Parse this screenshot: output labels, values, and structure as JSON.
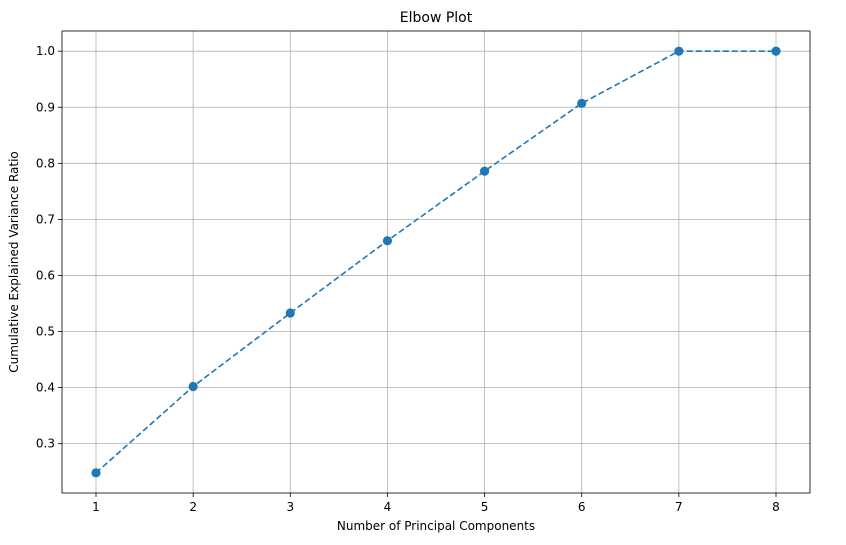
{
  "chart_data": {
    "type": "line",
    "title": "Elbow Plot",
    "xlabel": "Number of Principal Components",
    "ylabel": "Cumulative Explained Variance Ratio",
    "x": [
      1,
      2,
      3,
      4,
      5,
      6,
      7,
      8
    ],
    "series": [
      {
        "values": [
          0.248,
          0.402,
          0.533,
          0.662,
          0.786,
          0.907,
          1.0,
          1.0
        ],
        "color": "#1f77b4",
        "line_style": "dashed",
        "marker": "circle"
      }
    ],
    "xlim": [
      0.65,
      8.35
    ],
    "ylim": [
      0.212,
      1.036
    ],
    "xticks": [
      "1",
      "2",
      "3",
      "4",
      "5",
      "6",
      "7",
      "8"
    ],
    "xtick_values": [
      1,
      2,
      3,
      4,
      5,
      6,
      7,
      8
    ],
    "yticks": [
      "0.3",
      "0.4",
      "0.5",
      "0.6",
      "0.7",
      "0.8",
      "0.9",
      "1.0"
    ],
    "ytick_values": [
      0.3,
      0.4,
      0.5,
      0.6,
      0.7,
      0.8,
      0.9,
      1.0
    ],
    "grid": true,
    "legend": "none"
  }
}
